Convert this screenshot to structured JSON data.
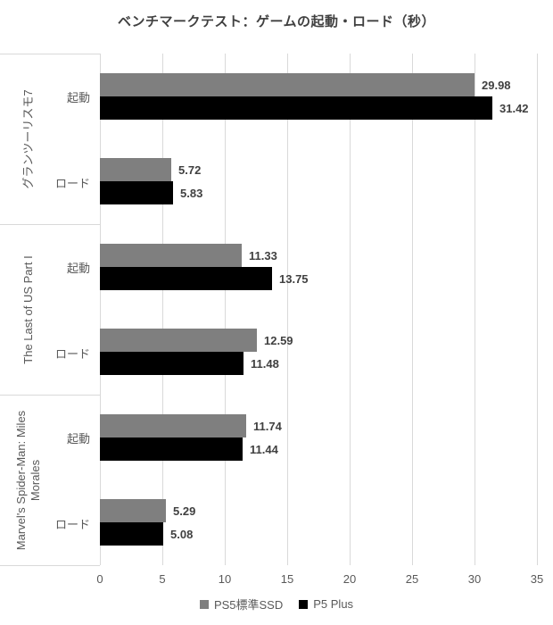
{
  "title": "ベンチマークテスト：ゲームの起動・ロード（秒）",
  "colors": {
    "series_gray": "#7f7f7f",
    "series_black": "#000000",
    "grid": "#d9d9d9",
    "text": "#595959",
    "title": "#404040",
    "value_label": "#404040",
    "background": "#ffffff"
  },
  "chart_data": {
    "type": "bar",
    "orientation": "horizontal",
    "title": "ベンチマークテスト：ゲームの起動・ロード（秒）",
    "unit": "秒",
    "grid": true,
    "legend_position": "bottom",
    "x_axis": {
      "min": 0,
      "max": 35,
      "tick_interval": 5,
      "ticks": [
        0,
        5,
        10,
        15,
        20,
        25,
        30,
        35
      ]
    },
    "series": [
      {
        "name": "PS5標準SSD",
        "color": "#7f7f7f"
      },
      {
        "name": "P5 Plus",
        "color": "#000000"
      }
    ],
    "groups": [
      {
        "label": "グランツーリスモ7",
        "categories": [
          {
            "label": "起動",
            "values": [
              29.98,
              31.42
            ]
          },
          {
            "label": "ロード",
            "values": [
              5.72,
              5.83
            ]
          }
        ]
      },
      {
        "label": "The Last of US Part I",
        "categories": [
          {
            "label": "起動",
            "values": [
              11.33,
              13.75
            ]
          },
          {
            "label": "ロード",
            "values": [
              12.59,
              11.48
            ]
          }
        ]
      },
      {
        "label": "Marvel's Spider-Man: Miles Morales",
        "categories": [
          {
            "label": "起動",
            "values": [
              11.74,
              11.44
            ]
          },
          {
            "label": "ロード",
            "values": [
              5.29,
              5.08
            ]
          }
        ]
      }
    ]
  }
}
